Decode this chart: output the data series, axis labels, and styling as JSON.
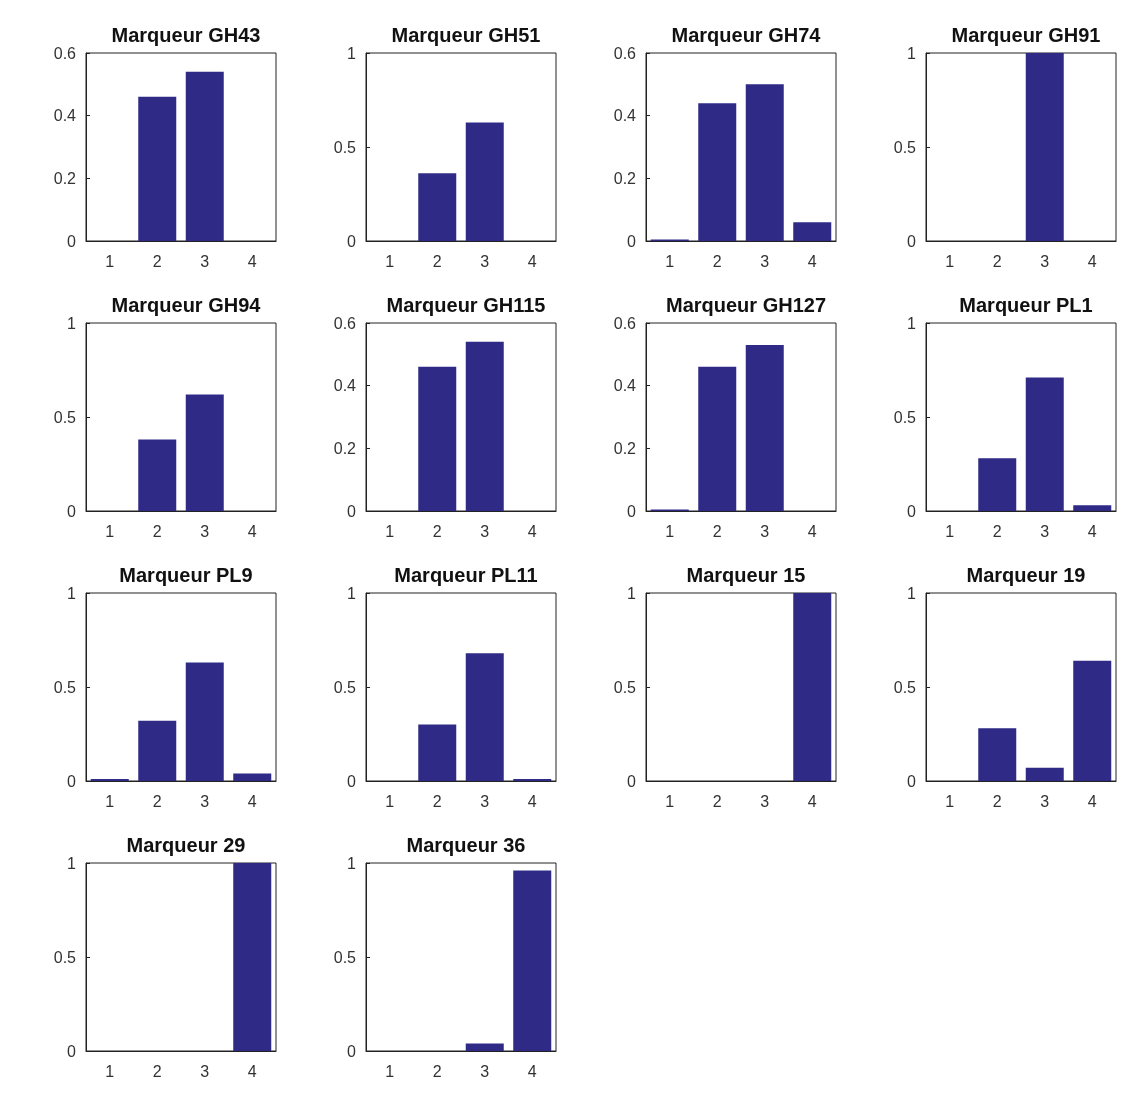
{
  "chart_data": [
    {
      "type": "bar",
      "title": "Marqueur GH43",
      "categories": [
        "1",
        "2",
        "3",
        "4"
      ],
      "values": [
        0,
        0.46,
        0.54,
        0
      ],
      "color": "#2f2a86",
      "ylim": [
        0,
        0.6
      ],
      "yticks": [
        0,
        0.2,
        0.4,
        0.6
      ]
    },
    {
      "type": "bar",
      "title": "Marqueur GH51",
      "categories": [
        "1",
        "2",
        "3",
        "4"
      ],
      "values": [
        0,
        0.36,
        0.63,
        0
      ],
      "color": "#2f2a86",
      "ylim": [
        0,
        1
      ],
      "yticks": [
        0,
        0.5,
        1
      ]
    },
    {
      "type": "bar",
      "title": "Marqueur GH74",
      "categories": [
        "1",
        "2",
        "3",
        "4"
      ],
      "values": [
        0.005,
        0.44,
        0.5,
        0.06
      ],
      "color": "#2f2a86",
      "ylim": [
        0,
        0.6
      ],
      "yticks": [
        0,
        0.2,
        0.4,
        0.6
      ]
    },
    {
      "type": "bar",
      "title": "Marqueur GH91",
      "categories": [
        "1",
        "2",
        "3",
        "4"
      ],
      "values": [
        0,
        0,
        1,
        0
      ],
      "color": "#2f2a86",
      "ylim": [
        0,
        1
      ],
      "yticks": [
        0,
        0.5,
        1
      ]
    },
    {
      "type": "bar",
      "title": "Marqueur GH94",
      "categories": [
        "1",
        "2",
        "3",
        "4"
      ],
      "values": [
        0,
        0.38,
        0.62,
        0
      ],
      "color": "#2f2a86",
      "ylim": [
        0,
        1
      ],
      "yticks": [
        0,
        0.5,
        1
      ]
    },
    {
      "type": "bar",
      "title": "Marqueur GH115",
      "categories": [
        "1",
        "2",
        "3",
        "4"
      ],
      "values": [
        0,
        0.46,
        0.54,
        0
      ],
      "color": "#2f2a86",
      "ylim": [
        0,
        0.6
      ],
      "yticks": [
        0,
        0.2,
        0.4,
        0.6
      ]
    },
    {
      "type": "bar",
      "title": "Marqueur GH127",
      "categories": [
        "1",
        "2",
        "3",
        "4"
      ],
      "values": [
        0.005,
        0.46,
        0.53,
        0
      ],
      "color": "#2f2a86",
      "ylim": [
        0,
        0.6
      ],
      "yticks": [
        0,
        0.2,
        0.4,
        0.6
      ]
    },
    {
      "type": "bar",
      "title": "Marqueur PL1",
      "categories": [
        "1",
        "2",
        "3",
        "4"
      ],
      "values": [
        0,
        0.28,
        0.71,
        0.03
      ],
      "color": "#2f2a86",
      "ylim": [
        0,
        1
      ],
      "yticks": [
        0,
        0.5,
        1
      ]
    },
    {
      "type": "bar",
      "title": "Marqueur PL9",
      "categories": [
        "1",
        "2",
        "3",
        "4"
      ],
      "values": [
        0.01,
        0.32,
        0.63,
        0.04
      ],
      "color": "#2f2a86",
      "ylim": [
        0,
        1
      ],
      "yticks": [
        0,
        0.5,
        1
      ]
    },
    {
      "type": "bar",
      "title": "Marqueur PL11",
      "categories": [
        "1",
        "2",
        "3",
        "4"
      ],
      "values": [
        0,
        0.3,
        0.68,
        0.01
      ],
      "color": "#2f2a86",
      "ylim": [
        0,
        1
      ],
      "yticks": [
        0,
        0.5,
        1
      ]
    },
    {
      "type": "bar",
      "title": "Marqueur 15",
      "categories": [
        "1",
        "2",
        "3",
        "4"
      ],
      "values": [
        0,
        0,
        0,
        1
      ],
      "color": "#2f2a86",
      "ylim": [
        0,
        1
      ],
      "yticks": [
        0,
        0.5,
        1
      ]
    },
    {
      "type": "bar",
      "title": "Marqueur 19",
      "categories": [
        "1",
        "2",
        "3",
        "4"
      ],
      "values": [
        0,
        0.28,
        0.07,
        0.64
      ],
      "color": "#2f2a86",
      "ylim": [
        0,
        1
      ],
      "yticks": [
        0,
        0.5,
        1
      ]
    },
    {
      "type": "bar",
      "title": "Marqueur 29",
      "categories": [
        "1",
        "2",
        "3",
        "4"
      ],
      "values": [
        0,
        0,
        0,
        1
      ],
      "color": "#2f2a86",
      "ylim": [
        0,
        1
      ],
      "yticks": [
        0,
        0.5,
        1
      ]
    },
    {
      "type": "bar",
      "title": "Marqueur 36",
      "categories": [
        "1",
        "2",
        "3",
        "4"
      ],
      "values": [
        0,
        0,
        0.04,
        0.96
      ],
      "color": "#2f2a86",
      "ylim": [
        0,
        1
      ],
      "yticks": [
        0,
        0.5,
        1
      ]
    }
  ]
}
